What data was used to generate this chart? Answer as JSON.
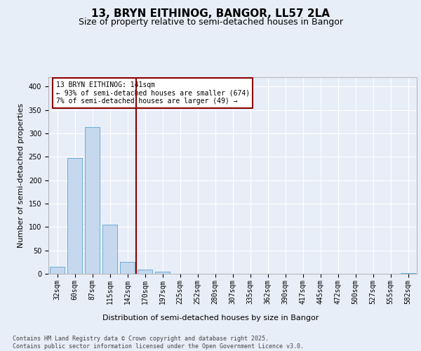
{
  "title": "13, BRYN EITHINOG, BANGOR, LL57 2LA",
  "subtitle": "Size of property relative to semi-detached houses in Bangor",
  "xlabel": "Distribution of semi-detached houses by size in Bangor",
  "ylabel": "Number of semi-detached properties",
  "categories": [
    "32sqm",
    "60sqm",
    "87sqm",
    "115sqm",
    "142sqm",
    "170sqm",
    "197sqm",
    "225sqm",
    "252sqm",
    "280sqm",
    "307sqm",
    "335sqm",
    "362sqm",
    "390sqm",
    "417sqm",
    "445sqm",
    "472sqm",
    "500sqm",
    "527sqm",
    "555sqm",
    "582sqm"
  ],
  "values": [
    15,
    248,
    313,
    105,
    25,
    9,
    5,
    0,
    0,
    0,
    0,
    0,
    0,
    0,
    0,
    0,
    0,
    0,
    0,
    0,
    1
  ],
  "bar_color": "#c5d8ee",
  "bar_edge_color": "#6aaed6",
  "vline_color": "#8b0000",
  "annotation_text": "13 BRYN EITHINOG: 141sqm\n← 93% of semi-detached houses are smaller (674)\n7% of semi-detached houses are larger (49) →",
  "annotation_box_color": "#8b0000",
  "ylim": [
    0,
    420
  ],
  "yticks": [
    0,
    50,
    100,
    150,
    200,
    250,
    300,
    350,
    400
  ],
  "footnote": "Contains HM Land Registry data © Crown copyright and database right 2025.\nContains public sector information licensed under the Open Government Licence v3.0.",
  "bg_color": "#e8eef8",
  "plot_bg_color": "#e8eef8",
  "title_fontsize": 11,
  "subtitle_fontsize": 9,
  "axis_label_fontsize": 8,
  "tick_fontsize": 7,
  "footnote_fontsize": 6
}
